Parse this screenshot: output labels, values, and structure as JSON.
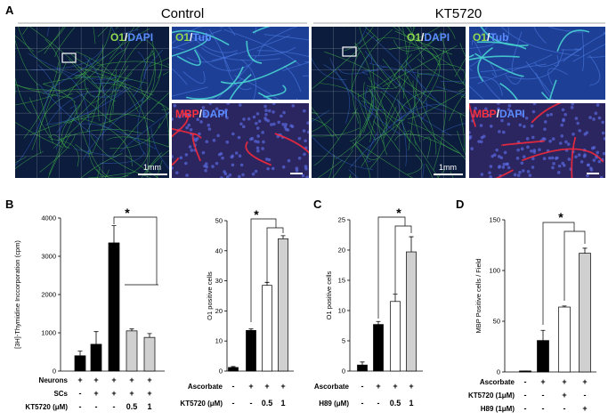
{
  "panels": {
    "A": "A",
    "B": "B",
    "C": "C",
    "D": "D"
  },
  "images": {
    "control_title": "Control",
    "treated_title": "KT5720",
    "o1_dapi": [
      "O1",
      "/",
      "DAPI"
    ],
    "o1_tub": [
      "O1",
      "/",
      "Tub"
    ],
    "mbp_dapi": [
      "MBP",
      "/",
      "DAPI"
    ],
    "scale_bar": "1mm"
  },
  "chart_data": [
    {
      "type": "bar",
      "y_label": "[3H]-Thymidine Inccorporation (cpm)",
      "values": [
        400,
        700,
        3350,
        1050,
        880
      ],
      "errors": [
        120,
        330,
        450,
        50,
        100
      ],
      "colors": [
        "#000000",
        "#000000",
        "#000000",
        "#d0d0d0",
        "#d0d0d0"
      ],
      "ylim": [
        0,
        4000
      ],
      "yticks": [
        0,
        1000,
        2000,
        3000,
        4000
      ],
      "conditions": [
        {
          "label": "Neurons",
          "values": [
            "+",
            "+",
            "+",
            "+",
            "+"
          ]
        },
        {
          "label": "SCs",
          "values": [
            "-",
            "+",
            "+",
            "+",
            "+"
          ]
        },
        {
          "label": "KT5720 (μM)",
          "values": [
            "-",
            "-",
            "-",
            "0.5",
            "1"
          ]
        }
      ],
      "significance": "*"
    },
    {
      "type": "bar",
      "y_label": "O1 positive cells",
      "values": [
        1.2,
        13.5,
        28.5,
        44
      ],
      "errors": [
        0.3,
        0.5,
        1,
        1
      ],
      "colors": [
        "#000000",
        "#000000",
        "#ffffff",
        "#d0d0d0"
      ],
      "ylim": [
        0,
        50
      ],
      "yticks": [
        0,
        10,
        20,
        30,
        40,
        50
      ],
      "conditions": [
        {
          "label": "Ascorbate",
          "values": [
            "-",
            "+",
            "+",
            "+"
          ]
        },
        {
          "label": "KT5720 (μM)",
          "values": [
            "-",
            "-",
            "0.5",
            "1"
          ]
        }
      ],
      "significance": "*"
    },
    {
      "type": "bar",
      "y_label": "O1 positive cells",
      "values": [
        1,
        7.7,
        11.5,
        19.7
      ],
      "errors": [
        0.5,
        0.5,
        1.2,
        2.5
      ],
      "colors": [
        "#000000",
        "#000000",
        "#ffffff",
        "#d0d0d0"
      ],
      "ylim": [
        0,
        25
      ],
      "yticks": [
        0,
        5,
        10,
        15,
        20,
        25
      ],
      "conditions": [
        {
          "label": "Ascorbate",
          "values": [
            "-",
            "+",
            "+",
            "+"
          ]
        },
        {
          "label": "H89 (μM)",
          "values": [
            "-",
            "-",
            "0.5",
            "1"
          ]
        }
      ],
      "significance": "*"
    },
    {
      "type": "bar",
      "y_label": "MBP Positive cells / Field",
      "values": [
        1,
        31,
        64,
        117
      ],
      "errors": [
        0,
        10,
        1,
        5
      ],
      "colors": [
        "#000000",
        "#000000",
        "#ffffff",
        "#d0d0d0"
      ],
      "ylim": [
        0,
        150
      ],
      "yticks": [
        0,
        50,
        100,
        150
      ],
      "conditions": [
        {
          "label": "Ascorbate",
          "values": [
            "-",
            "+",
            "+",
            "+"
          ]
        },
        {
          "label": "KT5720 (1μM)",
          "values": [
            "-",
            "-",
            "+",
            "-"
          ]
        },
        {
          "label": "H89 (1μM)",
          "values": [
            "-",
            "-",
            "-",
            "+"
          ]
        }
      ],
      "significance": "*"
    }
  ]
}
